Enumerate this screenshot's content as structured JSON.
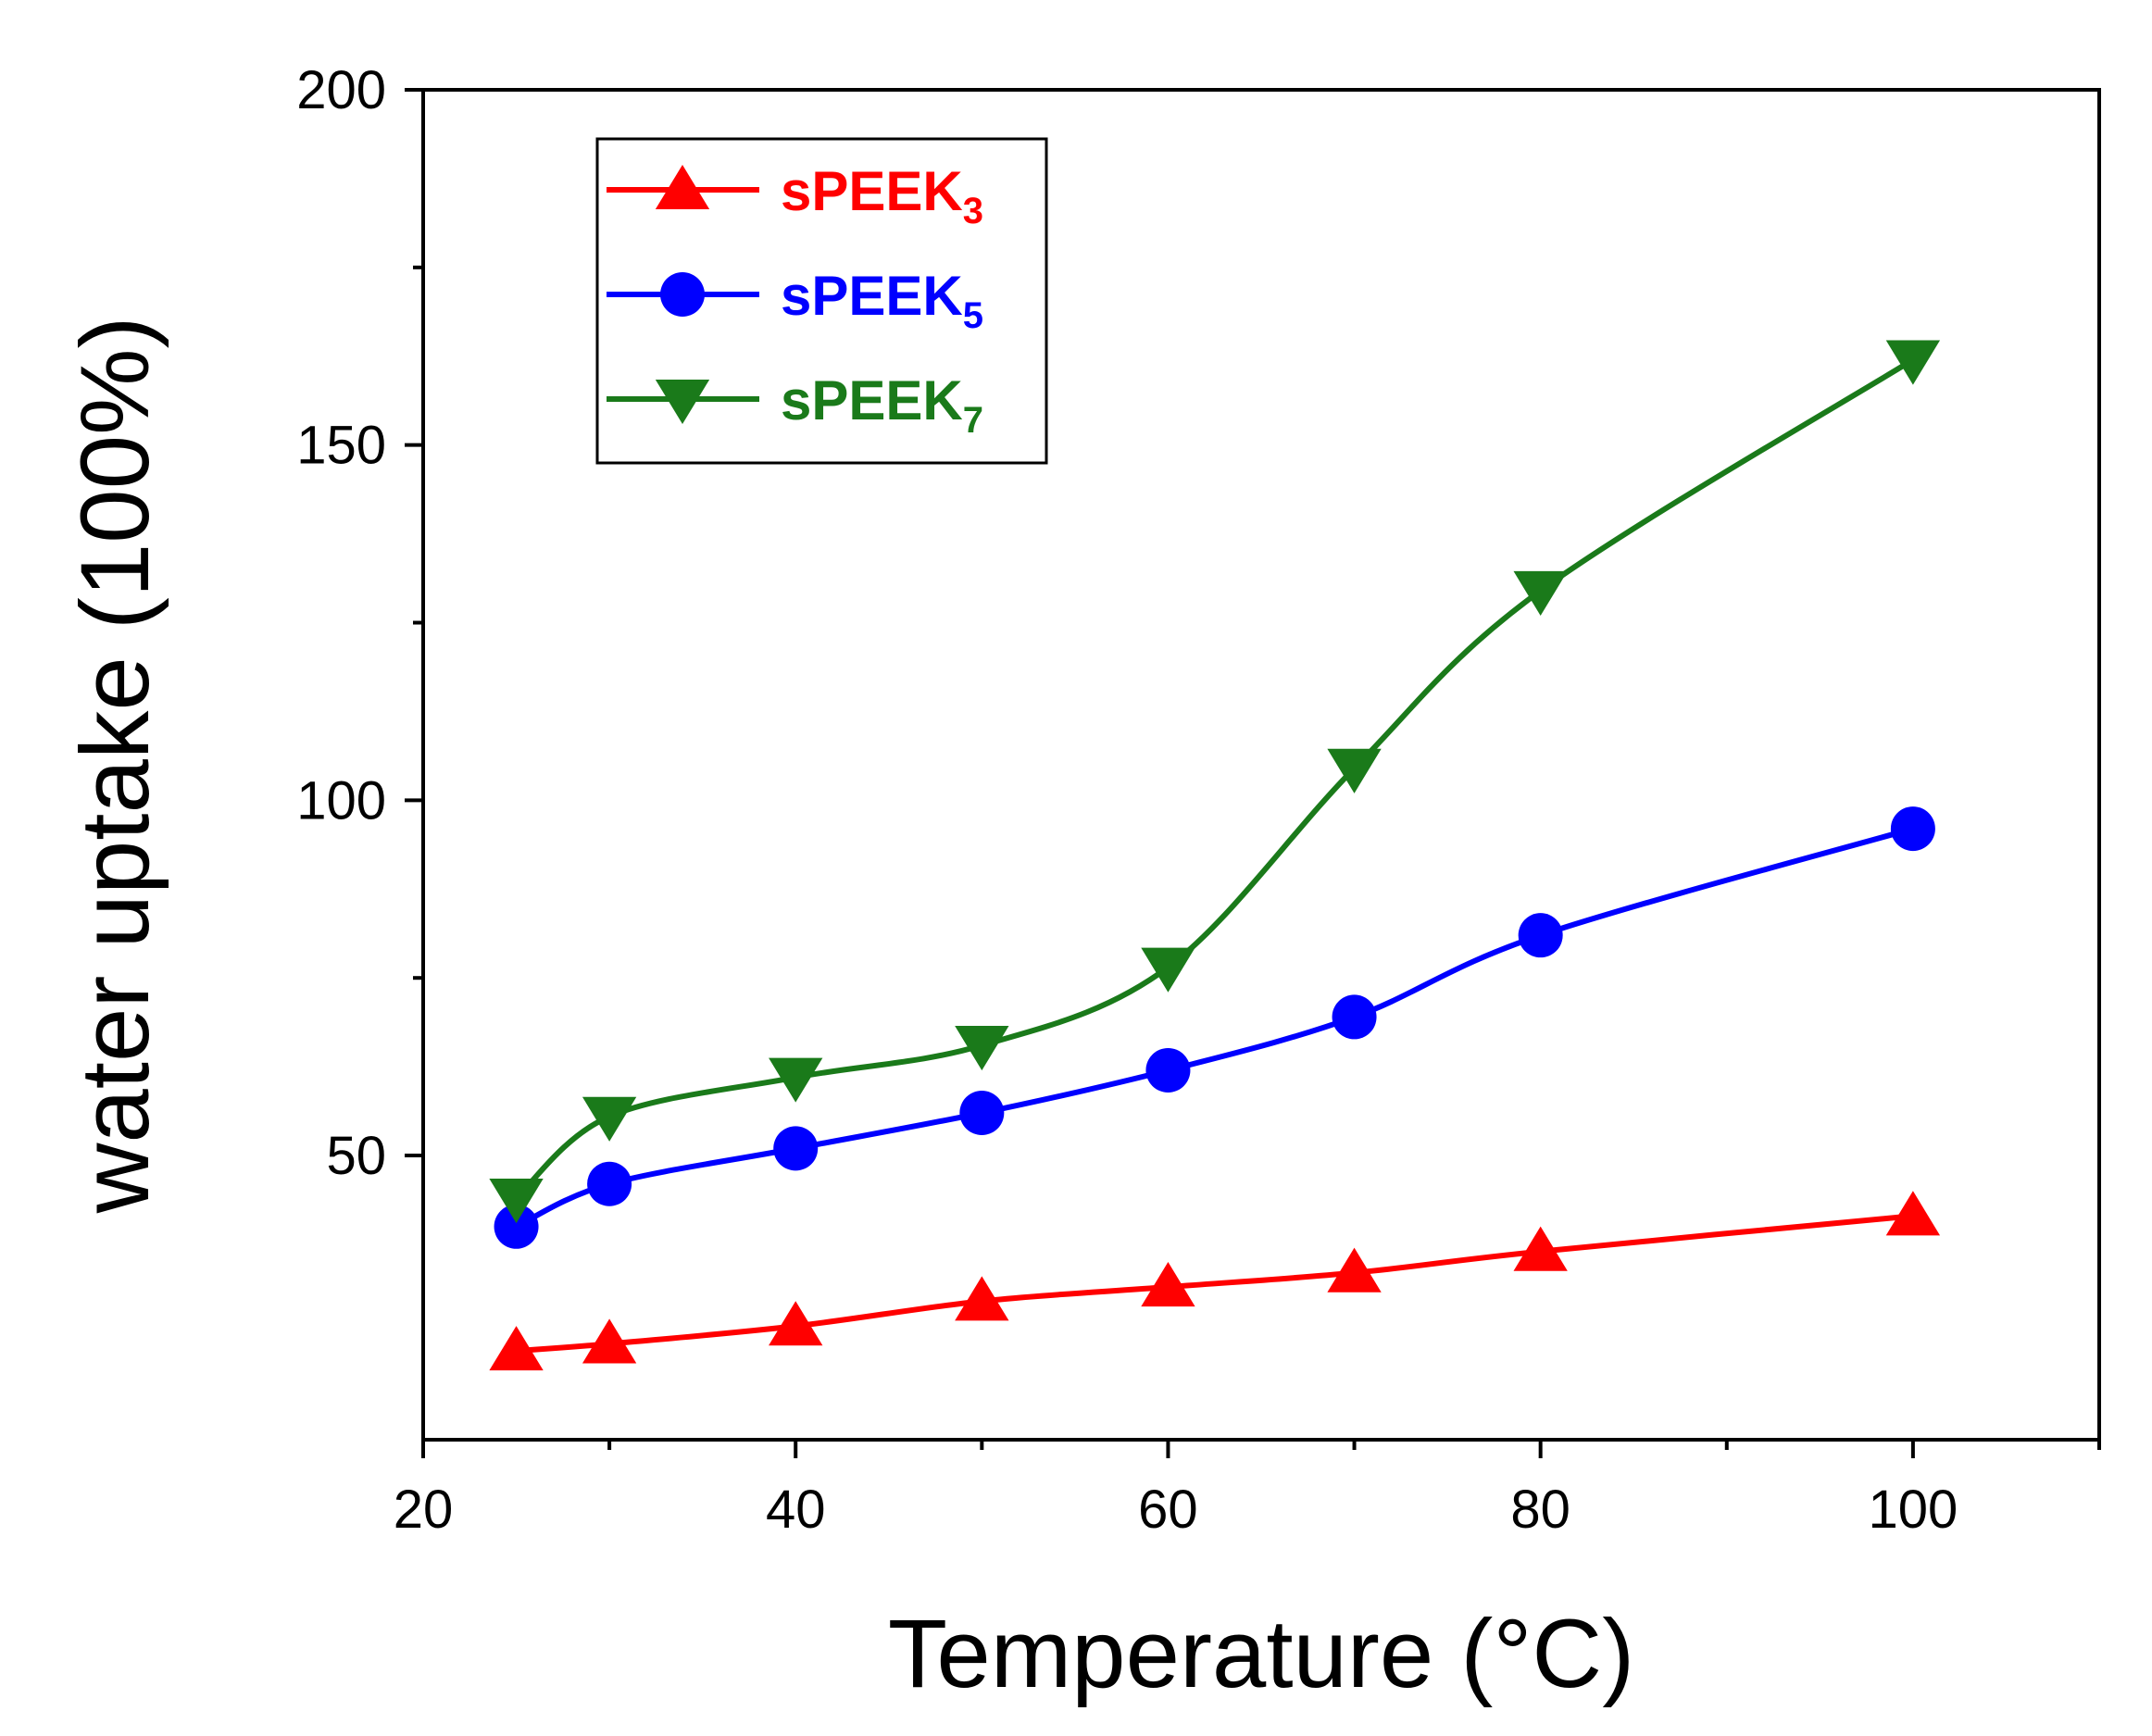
{
  "chart_data": {
    "type": "line",
    "title": "",
    "xlabel": "Temperature (°C)",
    "ylabel": "water uptake (100%)",
    "xlim": [
      20,
      110
    ],
    "ylim": [
      10,
      200
    ],
    "xticks": [
      20,
      40,
      60,
      80,
      100
    ],
    "xminor": [
      30,
      50,
      70,
      90,
      110
    ],
    "yticks": [
      50,
      100,
      150,
      200
    ],
    "legend_position": "top-left",
    "series": [
      {
        "name": "sPEEK3",
        "label_main": "sPEEK",
        "label_sub": "3",
        "color": "#ff0000",
        "marker": "triangle-up",
        "x": [
          25,
          30,
          40,
          50,
          60,
          70,
          80,
          100
        ],
        "y": [
          22.5,
          23.5,
          26,
          29.5,
          31.5,
          33.5,
          36.5,
          41.5
        ]
      },
      {
        "name": "sPEEK5",
        "label_main": "sPEEK",
        "label_sub": "5",
        "color": "#0000ff",
        "marker": "circle",
        "x": [
          25,
          30,
          40,
          50,
          60,
          70,
          80,
          100
        ],
        "y": [
          40,
          46,
          51,
          56,
          62,
          69.5,
          81,
          96
        ]
      },
      {
        "name": "sPEEK7",
        "label_main": "sPEEK",
        "label_sub": "7",
        "color": "#1a7a1a",
        "marker": "triangle-down",
        "x": [
          25,
          30,
          40,
          50,
          60,
          70,
          80,
          100
        ],
        "y": [
          44,
          55.5,
          61,
          65.5,
          76.5,
          104.5,
          129.5,
          162
        ]
      }
    ]
  }
}
